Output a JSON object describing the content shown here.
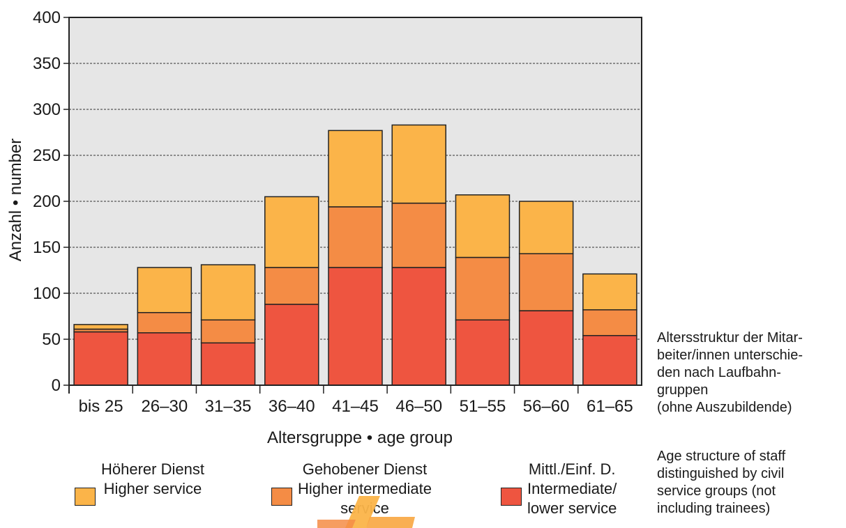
{
  "chart_data": {
    "type": "bar",
    "stacked": true,
    "categories": [
      "bis 25",
      "26–30",
      "31–35",
      "36–40",
      "41–45",
      "46–50",
      "51–55",
      "56–60",
      "61–65"
    ],
    "series": [
      {
        "name": "Mittl./Einf. D. Intermediate/ lower service",
        "color": "#ee5540",
        "values": [
          58,
          57,
          46,
          88,
          128,
          128,
          71,
          81,
          54
        ]
      },
      {
        "name": "Gehobener Dienst Higher intermediate service",
        "color": "#f48c45",
        "values": [
          3,
          22,
          25,
          40,
          66,
          70,
          68,
          62,
          28
        ]
      },
      {
        "name": "Höherer Dienst Higher service",
        "color": "#fbb449",
        "values": [
          5,
          49,
          60,
          77,
          83,
          85,
          68,
          57,
          39
        ]
      }
    ],
    "ylabel": "Anzahl • number",
    "xlabel": "Altersgruppe • age group",
    "ylim": [
      0,
      400
    ],
    "yticks": [
      0,
      50,
      100,
      150,
      200,
      250,
      300,
      350,
      400
    ],
    "grid": true,
    "plot_background": "#e6e6e6"
  },
  "legend": {
    "items": [
      {
        "line1": "Höherer Dienst",
        "line2": "Higher service",
        "line3": "",
        "color": "#fbb449"
      },
      {
        "line1": "Gehobener Dienst",
        "line2": "Higher intermediate",
        "line3": "service",
        "color": "#f48c45"
      },
      {
        "line1": "Mittl./Einf. D.",
        "line2": "Intermediate/",
        "line3": "lower service",
        "color": "#ee5540"
      }
    ]
  },
  "caption": {
    "german": [
      "Altersstruktur der Mitar-",
      "beiter/innen unterschie-",
      "den nach Laufbahn-",
      "gruppen",
      "(ohne Auszubildende)"
    ],
    "english": [
      "Age structure of staff",
      "distinguished by civil",
      "service groups (not",
      "including trainees)"
    ]
  }
}
